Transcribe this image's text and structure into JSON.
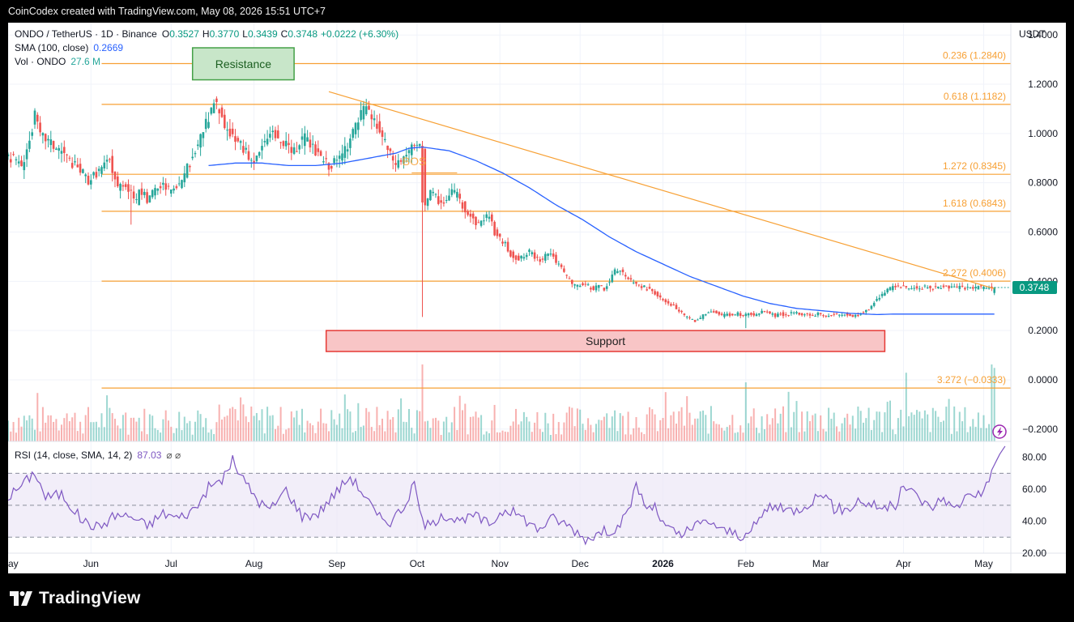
{
  "header": {
    "credit": "CoinCodex created with TradingView.com, May 08, 2026 15:51 UTC+7"
  },
  "legend": {
    "symbol": "ONDO / TetherUS · 1D · Binance",
    "o_label": "O",
    "o_value": "0.3527",
    "h_label": "H",
    "h_value": "0.3770",
    "l_label": "L",
    "l_value": "0.3439",
    "c_label": "C",
    "c_value": "0.3748",
    "change": "+0.0222 (+6.30%)",
    "sma_label": "SMA (100, close)",
    "sma_value": "0.2669",
    "vol_label": "Vol · ONDO",
    "vol_value": "27.6 M"
  },
  "colors": {
    "up": "#26a69a",
    "down": "#ef5350",
    "sma": "#2962ff",
    "fib": "#f7a034",
    "rsi": "#7e57c2",
    "rsi_band": "#ede7f6",
    "support_fill": "#f8c5c6",
    "support_border": "#e53935",
    "resistance_fill": "#c8e6c9",
    "resistance_border": "#43a047",
    "price_badge": "#089981"
  },
  "annotations": {
    "resistance": "Resistance",
    "support": "Support",
    "bos": "BOS"
  },
  "rsi": {
    "label": "RSI (14, close, SMA, 14, 2)",
    "value": "87.03",
    "icons": "⌀ ⌀",
    "yticks": [
      "80.00",
      "60.00",
      "40.00",
      "20.00"
    ]
  },
  "price_axis": {
    "unit": "USDT",
    "current_price": "0.3748"
  },
  "brand": {
    "name": "TradingView",
    "icon": "tradingview-logo-icon"
  },
  "chart_data": {
    "type": "candlestick",
    "pair": "ONDO / TetherUS",
    "interval": "1D",
    "ylim": [
      -0.25,
      1.45
    ],
    "yticks": [
      "1.4000",
      "1.2000",
      "1.0000",
      "0.8000",
      "0.6000",
      "0.4000",
      "0.2000",
      "0.0000",
      "−0.2000"
    ],
    "yticks_values": [
      1.4,
      1.2,
      1.0,
      0.8,
      0.6,
      0.4,
      0.2,
      0.0,
      -0.2
    ],
    "xticks": [
      "ay",
      "Jun",
      "Jul",
      "Aug",
      "Sep",
      "Oct",
      "Nov",
      "Dec",
      "2026",
      "Feb",
      "Mar",
      "Apr",
      "May"
    ],
    "xticks_days": [
      0,
      31,
      61,
      92,
      123,
      153,
      184,
      214,
      245,
      276,
      304,
      335,
      365
    ],
    "fib_levels": [
      {
        "label": "0.236 (1.2840)",
        "value": 1.284
      },
      {
        "label": "0.618 (1.1182)",
        "value": 1.1182
      },
      {
        "label": "1.272 (0.8345)",
        "value": 0.8345
      },
      {
        "label": "1.618 (0.6843)",
        "value": 0.6843
      },
      {
        "label": "2.272 (0.4006)",
        "value": 0.4006
      },
      {
        "label": "3.272 (−0.0333)",
        "value": -0.0333
      }
    ],
    "trendline": [
      [
        120,
        1.17
      ],
      [
        369,
        0.37
      ]
    ],
    "support_zone": [
      0.115,
      0.2
    ],
    "resistance_zone": [
      1.218,
      1.348
    ],
    "price_path": [
      [
        0,
        0.91
      ],
      [
        5,
        0.87
      ],
      [
        8,
        0.97
      ],
      [
        10,
        1.07
      ],
      [
        12,
        0.99
      ],
      [
        14,
        0.98
      ],
      [
        17,
        0.95
      ],
      [
        20,
        0.93
      ],
      [
        23,
        0.89
      ],
      [
        26,
        0.86
      ],
      [
        28,
        0.84
      ],
      [
        30,
        0.81
      ],
      [
        33,
        0.84
      ],
      [
        36,
        0.87
      ],
      [
        38,
        0.89
      ],
      [
        41,
        0.78
      ],
      [
        43,
        0.8
      ],
      [
        46,
        0.77
      ],
      [
        48,
        0.72
      ],
      [
        49,
        0.78
      ],
      [
        52,
        0.73
      ],
      [
        55,
        0.77
      ],
      [
        58,
        0.79
      ],
      [
        61,
        0.76
      ],
      [
        64,
        0.79
      ],
      [
        66,
        0.84
      ],
      [
        69,
        0.9
      ],
      [
        72,
        0.99
      ],
      [
        75,
        1.06
      ],
      [
        77,
        1.12
      ],
      [
        79,
        1.09
      ],
      [
        81,
        1.02
      ],
      [
        84,
        0.99
      ],
      [
        86,
        0.96
      ],
      [
        89,
        0.93
      ],
      [
        91,
        0.89
      ],
      [
        93,
        0.9
      ],
      [
        95,
        0.95
      ],
      [
        97,
        0.98
      ],
      [
        99,
        1.02
      ],
      [
        101,
        0.97
      ],
      [
        104,
        0.95
      ],
      [
        106,
        0.92
      ],
      [
        108,
        0.94
      ],
      [
        111,
        0.98
      ],
      [
        113,
        0.96
      ],
      [
        115,
        0.92
      ],
      [
        117,
        0.9
      ],
      [
        120,
        0.87
      ],
      [
        123,
        0.89
      ],
      [
        126,
        0.93
      ],
      [
        128,
        0.98
      ],
      [
        131,
        1.05
      ],
      [
        133,
        1.1
      ],
      [
        135,
        1.08
      ],
      [
        137,
        1.05
      ],
      [
        139,
        1.01
      ],
      [
        141,
        0.96
      ],
      [
        143,
        0.91
      ],
      [
        145,
        0.88
      ],
      [
        147,
        0.89
      ],
      [
        149,
        0.92
      ],
      [
        151,
        0.94
      ],
      [
        153,
        0.95
      ],
      [
        155,
        0.93
      ],
      [
        156,
        0.72
      ],
      [
        158,
        0.76
      ],
      [
        160,
        0.74
      ],
      [
        162,
        0.72
      ],
      [
        164,
        0.73
      ],
      [
        166,
        0.76
      ],
      [
        168,
        0.75
      ],
      [
        170,
        0.71
      ],
      [
        172,
        0.68
      ],
      [
        174,
        0.65
      ],
      [
        176,
        0.63
      ],
      [
        178,
        0.66
      ],
      [
        180,
        0.67
      ],
      [
        182,
        0.6
      ],
      [
        184,
        0.57
      ],
      [
        186,
        0.55
      ],
      [
        188,
        0.51
      ],
      [
        191,
        0.49
      ],
      [
        193,
        0.5
      ],
      [
        195,
        0.52
      ],
      [
        197,
        0.5
      ],
      [
        199,
        0.49
      ],
      [
        201,
        0.5
      ],
      [
        203,
        0.52
      ],
      [
        205,
        0.48
      ],
      [
        207,
        0.45
      ],
      [
        209,
        0.42
      ],
      [
        211,
        0.39
      ],
      [
        213,
        0.38
      ],
      [
        215,
        0.39
      ],
      [
        217,
        0.38
      ],
      [
        219,
        0.37
      ],
      [
        221,
        0.38
      ],
      [
        223,
        0.37
      ],
      [
        225,
        0.4
      ],
      [
        227,
        0.44
      ],
      [
        229,
        0.45
      ],
      [
        231,
        0.42
      ],
      [
        233,
        0.4
      ],
      [
        235,
        0.39
      ],
      [
        237,
        0.38
      ],
      [
        239,
        0.37
      ],
      [
        241,
        0.36
      ],
      [
        243,
        0.34
      ],
      [
        245,
        0.32
      ],
      [
        247,
        0.31
      ],
      [
        249,
        0.3
      ],
      [
        251,
        0.28
      ],
      [
        253,
        0.26
      ],
      [
        255,
        0.25
      ],
      [
        257,
        0.24
      ],
      [
        259,
        0.25
      ],
      [
        261,
        0.27
      ],
      [
        263,
        0.28
      ],
      [
        265,
        0.27
      ],
      [
        267,
        0.26
      ],
      [
        269,
        0.27
      ],
      [
        271,
        0.26
      ],
      [
        273,
        0.27
      ],
      [
        275,
        0.26
      ],
      [
        277,
        0.27
      ],
      [
        279,
        0.26
      ],
      [
        281,
        0.27
      ],
      [
        283,
        0.28
      ],
      [
        285,
        0.27
      ],
      [
        287,
        0.26
      ],
      [
        289,
        0.27
      ],
      [
        291,
        0.26
      ],
      [
        293,
        0.27
      ],
      [
        295,
        0.27
      ],
      [
        297,
        0.26
      ],
      [
        299,
        0.27
      ],
      [
        301,
        0.26
      ],
      [
        303,
        0.27
      ],
      [
        305,
        0.26
      ],
      [
        307,
        0.26
      ],
      [
        309,
        0.27
      ],
      [
        311,
        0.26
      ],
      [
        313,
        0.27
      ],
      [
        315,
        0.26
      ],
      [
        317,
        0.26
      ],
      [
        319,
        0.27
      ],
      [
        321,
        0.28
      ],
      [
        323,
        0.3
      ],
      [
        325,
        0.33
      ],
      [
        327,
        0.35
      ],
      [
        329,
        0.37
      ],
      [
        331,
        0.3748
      ]
    ],
    "sma_path": [
      [
        75,
        0.87
      ],
      [
        85,
        0.88
      ],
      [
        95,
        0.88
      ],
      [
        105,
        0.87
      ],
      [
        115,
        0.87
      ],
      [
        125,
        0.88
      ],
      [
        135,
        0.9
      ],
      [
        145,
        0.92
      ],
      [
        150,
        0.94
      ],
      [
        155,
        0.945
      ],
      [
        165,
        0.93
      ],
      [
        175,
        0.89
      ],
      [
        185,
        0.84
      ],
      [
        195,
        0.78
      ],
      [
        205,
        0.71
      ],
      [
        215,
        0.65
      ],
      [
        225,
        0.58
      ],
      [
        235,
        0.52
      ],
      [
        245,
        0.47
      ],
      [
        255,
        0.42
      ],
      [
        265,
        0.38
      ],
      [
        275,
        0.34
      ],
      [
        285,
        0.31
      ],
      [
        295,
        0.29
      ],
      [
        305,
        0.28
      ],
      [
        315,
        0.27
      ],
      [
        325,
        0.265
      ],
      [
        331,
        0.2669
      ]
    ],
    "volume_spikes": [
      [
        155,
        1.0
      ],
      [
        276,
        0.74
      ],
      [
        336,
        0.88
      ],
      [
        368,
        1.0
      ],
      [
        369,
        0.95
      ]
    ],
    "rsi_path": [
      [
        0,
        55
      ],
      [
        6,
        64
      ],
      [
        10,
        71
      ],
      [
        14,
        55
      ],
      [
        20,
        57
      ],
      [
        28,
        40
      ],
      [
        34,
        36
      ],
      [
        40,
        44
      ],
      [
        46,
        43
      ],
      [
        52,
        37
      ],
      [
        58,
        45
      ],
      [
        64,
        42
      ],
      [
        70,
        48
      ],
      [
        75,
        61
      ],
      [
        80,
        66
      ],
      [
        84,
        78
      ],
      [
        88,
        66
      ],
      [
        94,
        52
      ],
      [
        98,
        47
      ],
      [
        104,
        60
      ],
      [
        110,
        43
      ],
      [
        116,
        45
      ],
      [
        122,
        57
      ],
      [
        128,
        68
      ],
      [
        134,
        55
      ],
      [
        138,
        43
      ],
      [
        143,
        40
      ],
      [
        148,
        49
      ],
      [
        152,
        63
      ],
      [
        155,
        40
      ],
      [
        158,
        36
      ],
      [
        162,
        45
      ],
      [
        166,
        42
      ],
      [
        170,
        39
      ],
      [
        174,
        44
      ],
      [
        180,
        38
      ],
      [
        186,
        48
      ],
      [
        192,
        43
      ],
      [
        198,
        35
      ],
      [
        204,
        42
      ],
      [
        210,
        37
      ],
      [
        216,
        29
      ],
      [
        222,
        33
      ],
      [
        228,
        36
      ],
      [
        232,
        45
      ],
      [
        235,
        64
      ],
      [
        238,
        50
      ],
      [
        242,
        48
      ],
      [
        246,
        36
      ],
      [
        252,
        31
      ],
      [
        258,
        38
      ],
      [
        263,
        40
      ],
      [
        267,
        34
      ],
      [
        272,
        33
      ],
      [
        276,
        29
      ],
      [
        280,
        39
      ],
      [
        285,
        50
      ],
      [
        290,
        47
      ],
      [
        295,
        47
      ],
      [
        300,
        52
      ],
      [
        305,
        58
      ],
      [
        309,
        48
      ],
      [
        314,
        47
      ],
      [
        318,
        53
      ],
      [
        322,
        51
      ],
      [
        328,
        48
      ],
      [
        332,
        50
      ],
      [
        335,
        62
      ],
      [
        340,
        56
      ],
      [
        345,
        48
      ],
      [
        350,
        55
      ],
      [
        354,
        47
      ],
      [
        360,
        59
      ],
      [
        364,
        56
      ],
      [
        368,
        72
      ],
      [
        371,
        82
      ],
      [
        373,
        87.03
      ]
    ],
    "rsi_ylim": [
      20,
      90
    ],
    "rsi_band": [
      30,
      70
    ]
  }
}
